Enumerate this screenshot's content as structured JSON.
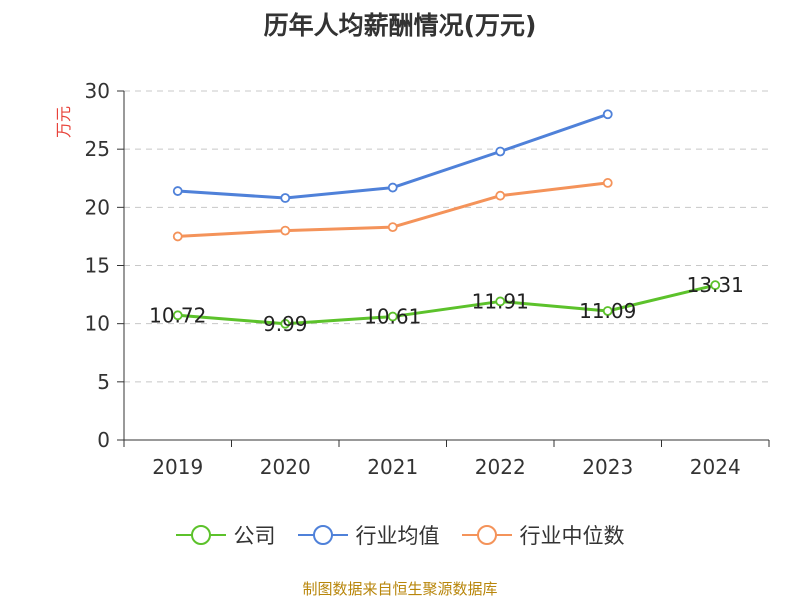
{
  "chart_data": {
    "type": "line",
    "title": "历年人均薪酬情况(万元)",
    "ylabel": "万元",
    "xlabel": "",
    "categories": [
      "2019",
      "2020",
      "2021",
      "2022",
      "2023",
      "2024"
    ],
    "yticks": [
      "0",
      "5",
      "10",
      "15",
      "20",
      "25",
      "30"
    ],
    "ylim": [
      0,
      30
    ],
    "grid": true,
    "legend_position": "bottom",
    "series": [
      {
        "name": "公司",
        "color": "#5cc22b",
        "values": [
          10.72,
          9.99,
          10.61,
          11.91,
          11.09,
          13.31
        ],
        "labels": [
          "10.72",
          "9.99",
          "10.61",
          "11.91",
          "11.09",
          "13.31"
        ]
      },
      {
        "name": "行业均值",
        "color": "#4f81d9",
        "values": [
          21.4,
          20.8,
          21.7,
          24.8,
          28.0,
          null
        ]
      },
      {
        "name": "行业中位数",
        "color": "#f4935a",
        "values": [
          17.5,
          18.0,
          18.3,
          21.0,
          22.1,
          null
        ]
      }
    ]
  },
  "footer": "制图数据来自恒生聚源数据库"
}
